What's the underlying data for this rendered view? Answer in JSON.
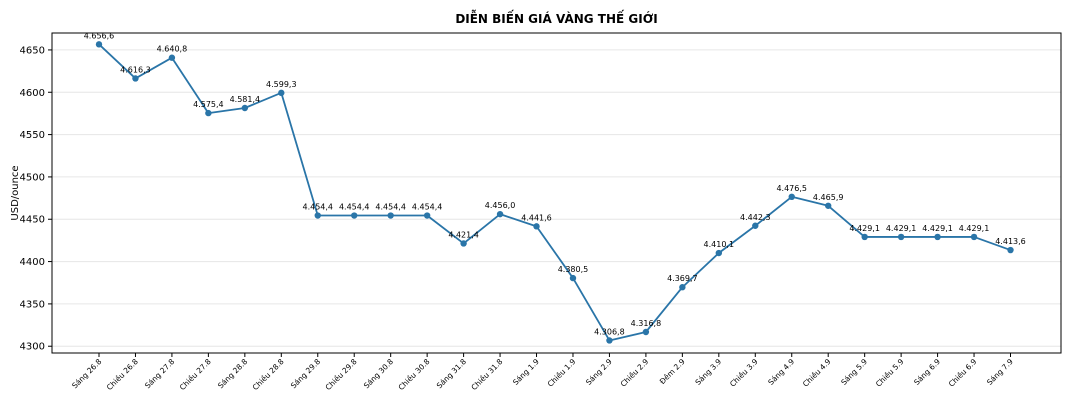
{
  "chart_data": {
    "type": "line",
    "title": "DIỄN BIẾN GIÁ VÀNG THẾ GIỚI",
    "xlabel": "",
    "ylabel": "USD/ounce",
    "ylim": [
      4292,
      4670
    ],
    "yticks": [
      4300,
      4350,
      4400,
      4450,
      4500,
      4550,
      4600,
      4650
    ],
    "grid": "y",
    "color": "#2a75a8",
    "categories": [
      "Sáng 26.8",
      "Chiều 26.8",
      "Sáng 27.8",
      "Chiều 27.8",
      "Sáng 28.8",
      "Chiều 28.8",
      "Sáng 29.8",
      "Chiều 29.8",
      "Sáng 30.8",
      "Chiều 30.8",
      "Sáng 31.8",
      "Chiều 31.8",
      "Sáng 1.9",
      "Chiều 1.9",
      "Sáng 2.9",
      "Chiều 2.9",
      "Đêm 2.9",
      "Sáng 3.9",
      "Chiều 3.9",
      "Sáng 4.9",
      "Chiều 4.9",
      "Sáng 5.9",
      "Chiều 5.9",
      "Sáng 6.9",
      "Chiều 6.9",
      "Sáng 7.9"
    ],
    "values": [
      4656.6,
      4616.3,
      4640.8,
      4575.4,
      4581.4,
      4599.3,
      4454.4,
      4454.4,
      4454.4,
      4454.4,
      4421.4,
      4456.0,
      4441.6,
      4380.5,
      4306.8,
      4316.8,
      4369.7,
      4410.1,
      4442.3,
      4476.5,
      4465.9,
      4429.1,
      4429.1,
      4429.1,
      4429.1,
      4413.6
    ],
    "labels": [
      "4.656,6",
      "4.616,3",
      "4.640,8",
      "4.575,4",
      "4.581,4",
      "4.599,3",
      "4.454,4",
      "4.454,4",
      "4.454,4",
      "4.454,4",
      "4.421,4",
      "4.456,0",
      "4.441,6",
      "4.380,5",
      "4.306,8",
      "4.316,8",
      "4.369,7",
      "4.410,1",
      "4.442,3",
      "4.476,5",
      "4.465,9",
      "4.429,1",
      "4.429,1",
      "4.429,1",
      "4.429,1",
      "4.413,6"
    ]
  }
}
